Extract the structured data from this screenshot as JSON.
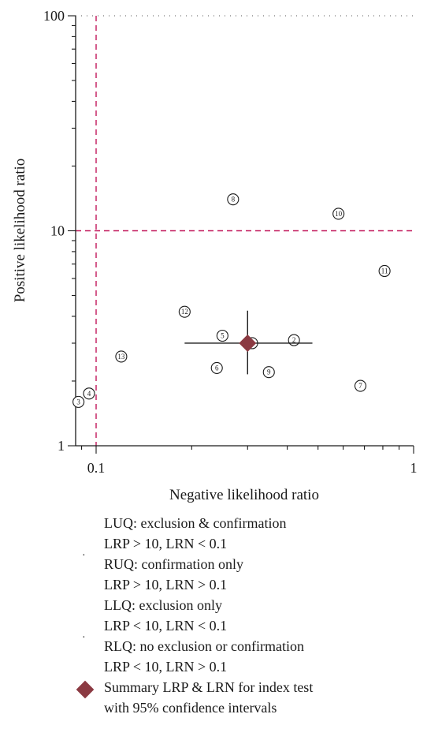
{
  "chart_data": {
    "type": "scatter",
    "xlabel": "Negative likelihood ratio",
    "ylabel": "Positive likelihood ratio",
    "xscale": "log",
    "yscale": "log",
    "xlim": [
      0.085,
      1
    ],
    "ylim": [
      1,
      100
    ],
    "x_ticks": [
      {
        "value": 0.1,
        "label": "0.1"
      },
      {
        "value": 1,
        "label": "1"
      }
    ],
    "y_ticks": [
      {
        "value": 1,
        "label": "1"
      },
      {
        "value": 10,
        "label": "10"
      },
      {
        "value": 100,
        "label": "100"
      }
    ],
    "thresholds": {
      "x": 0.1,
      "y": 10,
      "color": "#c2185b"
    },
    "studies": [
      {
        "id": "1",
        "x": 0.31,
        "y": 3.0
      },
      {
        "id": "2",
        "x": 0.42,
        "y": 3.1
      },
      {
        "id": "3",
        "x": 0.088,
        "y": 1.6
      },
      {
        "id": "4",
        "x": 0.095,
        "y": 1.75
      },
      {
        "id": "5",
        "x": 0.25,
        "y": 3.25
      },
      {
        "id": "6",
        "x": 0.24,
        "y": 2.3
      },
      {
        "id": "7",
        "x": 0.68,
        "y": 1.9
      },
      {
        "id": "8",
        "x": 0.27,
        "y": 14.0
      },
      {
        "id": "9",
        "x": 0.35,
        "y": 2.2
      },
      {
        "id": "10",
        "x": 0.58,
        "y": 12.0
      },
      {
        "id": "11",
        "x": 0.81,
        "y": 6.5
      },
      {
        "id": "12",
        "x": 0.19,
        "y": 4.2
      },
      {
        "id": "13",
        "x": 0.12,
        "y": 2.6
      }
    ],
    "summary": {
      "x": 0.3,
      "y": 3.0,
      "x_ci": [
        0.19,
        0.48
      ],
      "y_ci": [
        2.15,
        4.25
      ],
      "color": "#8b3a42"
    }
  },
  "legend": {
    "quadrants": [
      {
        "line1": "LUQ: exclusion & confirmation",
        "line2": "LRP > 10, LRN < 0.1"
      },
      {
        "line1": "RUQ: confirmation only",
        "line2": "LRP > 10, LRN > 0.1"
      },
      {
        "line1": "LLQ: exclusion only",
        "line2": "LRP < 10, LRN < 0.1"
      },
      {
        "line1": "RLQ: no exclusion or confirmation",
        "line2": "LRP < 10, LRN > 0.1"
      }
    ],
    "bullet": "·",
    "summary_line1": "Summary LRP & LRN for index test",
    "summary_line2": "with 95% confidence intervals"
  }
}
